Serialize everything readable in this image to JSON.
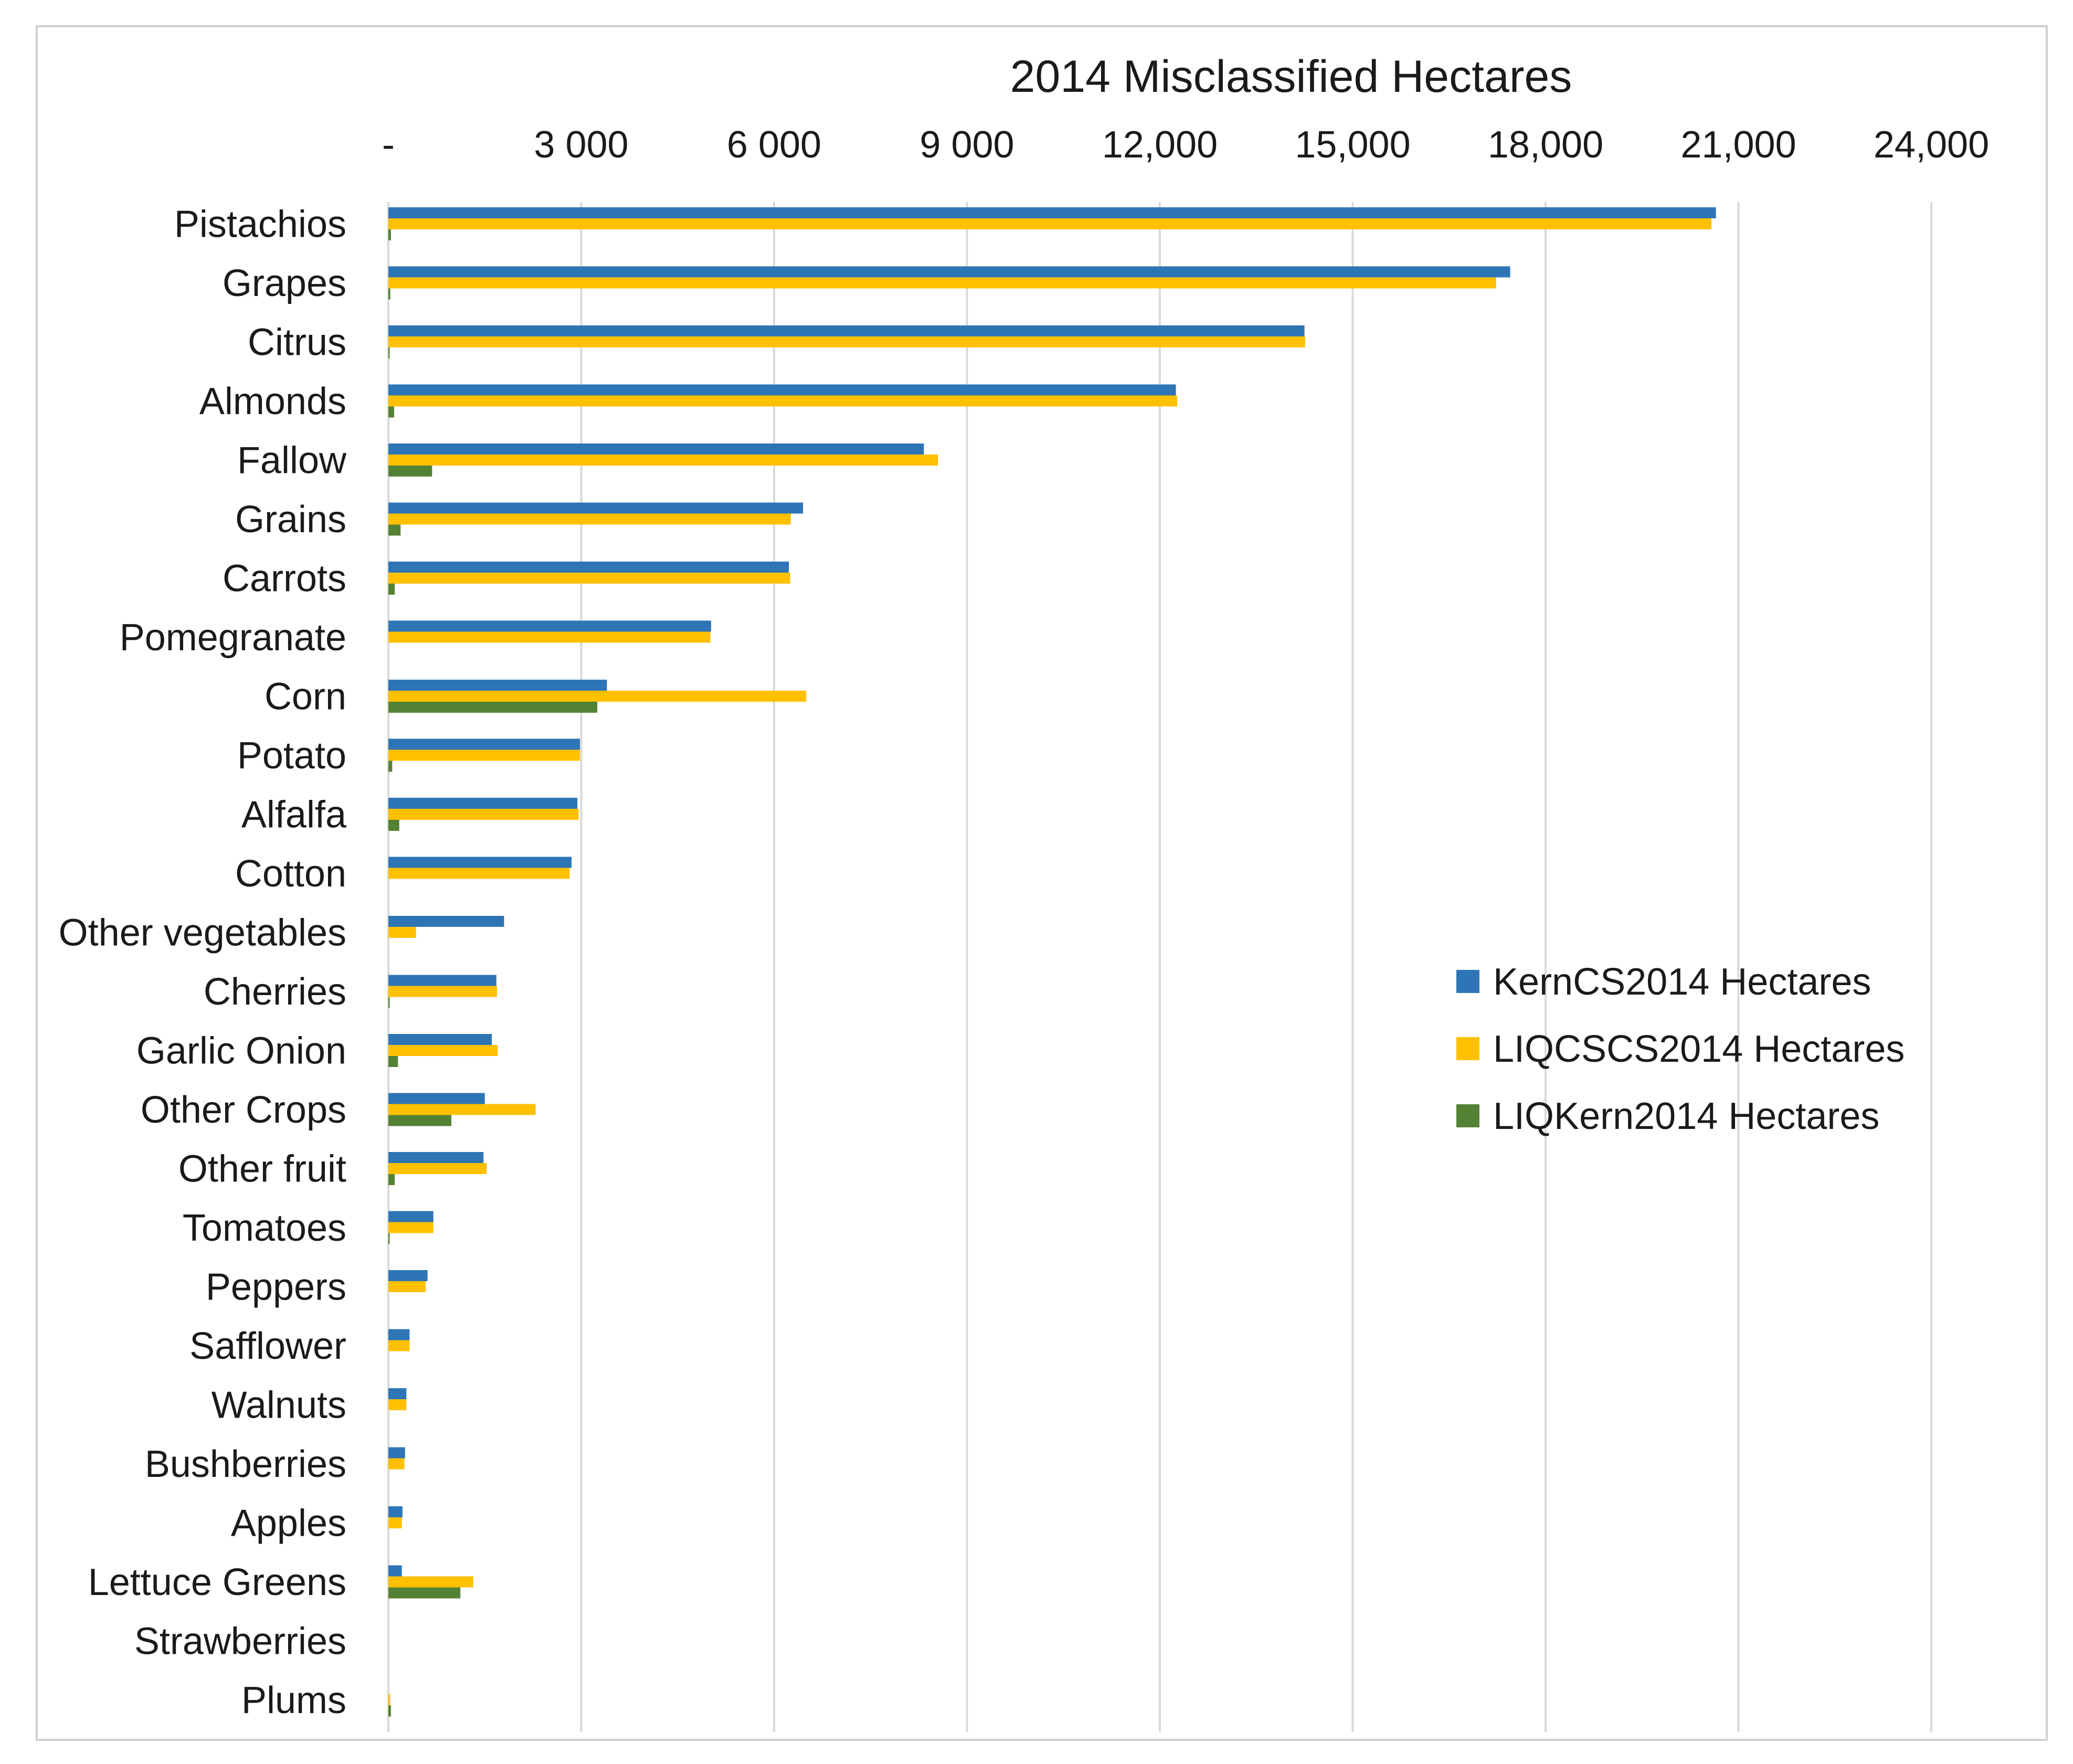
{
  "chart_data": {
    "type": "bar",
    "orientation": "horizontal",
    "title": "2014 Misclassified Hectares",
    "xlabel": "",
    "ylabel": "",
    "xlim": [
      0,
      24000
    ],
    "axis_position": "top",
    "grid": true,
    "legend_position": "right",
    "x_ticks": [
      {
        "value": 0,
        "label": "-"
      },
      {
        "value": 3000,
        "label": "3 000"
      },
      {
        "value": 6000,
        "label": "6 000"
      },
      {
        "value": 9000,
        "label": "9 000"
      },
      {
        "value": 12000,
        "label": "12,000"
      },
      {
        "value": 15000,
        "label": "15,000"
      },
      {
        "value": 18000,
        "label": "18,000"
      },
      {
        "value": 21000,
        "label": "21,000"
      },
      {
        "value": 24000,
        "label": "24,000"
      }
    ],
    "categories": [
      "Pistachios",
      "Grapes",
      "Citrus",
      "Almonds",
      "Fallow",
      "Grains",
      "Carrots",
      "Pomegranate",
      "Corn",
      "Potato",
      "Alfalfa",
      "Cotton",
      "Other vegetables",
      "Cherries",
      "Garlic Onion",
      "Other Crops",
      "Other fruit",
      "Tomatoes",
      "Peppers",
      "Safflower",
      "Walnuts",
      "Bushberries",
      "Apples",
      "Lettuce Greens",
      "Strawberries",
      "Plums"
    ],
    "series": [
      {
        "name": "KernCS2014 Hectares",
        "color": "#2E75B6",
        "values": [
          20650,
          17450,
          14250,
          12250,
          8330,
          6450,
          6230,
          5020,
          3400,
          2980,
          2940,
          2850,
          1800,
          1680,
          1610,
          1500,
          1480,
          700,
          610,
          330,
          280,
          260,
          220,
          210,
          0,
          0
        ]
      },
      {
        "name": "LIQCSCS2014 Hectares",
        "color": "#FFC000",
        "values": [
          20580,
          17230,
          14260,
          12270,
          8550,
          6260,
          6250,
          5010,
          6500,
          2980,
          2960,
          2820,
          430,
          1690,
          1700,
          2290,
          1530,
          700,
          580,
          330,
          280,
          250,
          210,
          1320,
          0,
          30
        ]
      },
      {
        "name": "LIQKern2014 Hectares",
        "color": "#548235",
        "values": [
          40,
          30,
          20,
          90,
          680,
          190,
          100,
          0,
          3250,
          60,
          170,
          0,
          0,
          20,
          150,
          980,
          100,
          20,
          0,
          0,
          0,
          0,
          0,
          1120,
          0,
          40
        ]
      }
    ]
  }
}
